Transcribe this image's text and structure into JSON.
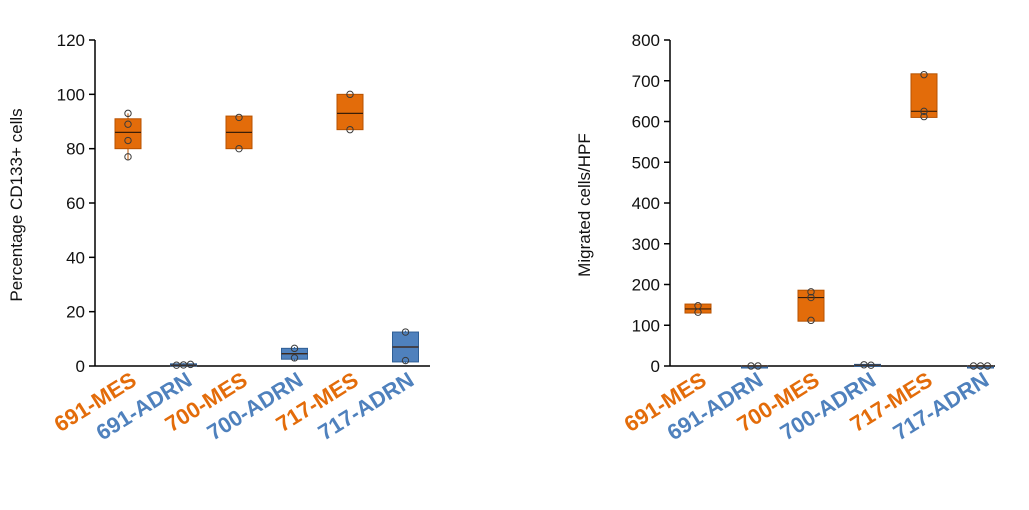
{
  "colors": {
    "mes": "#e36c0a",
    "adrn": "#4f81bd",
    "mes_stroke": "#b75200",
    "adrn_stroke": "#2f5f96"
  },
  "chart_data": [
    {
      "type": "box",
      "title": "",
      "xlabel": "",
      "ylabel": "Percentage CD133+ cells",
      "ylim": [
        0,
        120
      ],
      "yticks": [
        "0",
        "20",
        "40",
        "60",
        "80",
        "100",
        "120"
      ],
      "categories": [
        "691-MES",
        "691-ADRN",
        "700-MES",
        "700-ADRN",
        "717-MES",
        "717-ADRN"
      ],
      "category_groups": [
        "mes",
        "adrn",
        "mes",
        "adrn",
        "mes",
        "adrn"
      ],
      "boxes": [
        {
          "min": 76,
          "q1": 80,
          "median": 86,
          "q3": 91,
          "max": 93,
          "points": [
            93,
            89,
            83,
            77
          ]
        },
        {
          "min": 0,
          "q1": 0,
          "median": 0.3,
          "q3": 0.8,
          "max": 1,
          "points": [
            0.3,
            0.4,
            0.6
          ]
        },
        {
          "min": 80,
          "q1": 80,
          "median": 86,
          "q3": 92,
          "max": 92,
          "points": [
            91.5,
            80
          ]
        },
        {
          "min": 2,
          "q1": 2.5,
          "median": 4.5,
          "q3": 6.5,
          "max": 7,
          "points": [
            6.5,
            3
          ]
        },
        {
          "min": 87,
          "q1": 87,
          "median": 93,
          "q3": 100,
          "max": 100,
          "points": [
            100,
            87
          ]
        },
        {
          "min": 1,
          "q1": 1.5,
          "median": 7,
          "q3": 12.5,
          "max": 13,
          "points": [
            12.5,
            2
          ]
        }
      ]
    },
    {
      "type": "box",
      "title": "",
      "xlabel": "",
      "ylabel": "Migrated cells/HPF",
      "ylim": [
        0,
        800
      ],
      "yticks": [
        "0",
        "100",
        "200",
        "300",
        "400",
        "500",
        "600",
        "700",
        "800"
      ],
      "categories": [
        "691-MES",
        "691-ADRN",
        "700-MES",
        "700-ADRN",
        "717-MES",
        "717-ADRN"
      ],
      "category_groups": [
        "mes",
        "adrn",
        "mes",
        "adrn",
        "mes",
        "adrn"
      ],
      "boxes": [
        {
          "min": 130,
          "q1": 130,
          "median": 140,
          "q3": 152,
          "max": 152,
          "points": [
            148,
            132
          ]
        },
        {
          "min": 0,
          "q1": 0,
          "median": 0,
          "q3": 0,
          "max": 0,
          "points": [
            0,
            0
          ]
        },
        {
          "min": 110,
          "q1": 110,
          "median": 168,
          "q3": 186,
          "max": 186,
          "points": [
            182,
            168,
            112
          ]
        },
        {
          "min": 0,
          "q1": 0,
          "median": 2,
          "q3": 4,
          "max": 4,
          "points": [
            3,
            2
          ]
        },
        {
          "min": 610,
          "q1": 610,
          "median": 625,
          "q3": 717,
          "max": 717,
          "points": [
            715,
            625,
            612
          ]
        },
        {
          "min": 0,
          "q1": 0,
          "median": 0,
          "q3": 0,
          "max": 0,
          "points": [
            0,
            0,
            0
          ]
        }
      ]
    }
  ]
}
